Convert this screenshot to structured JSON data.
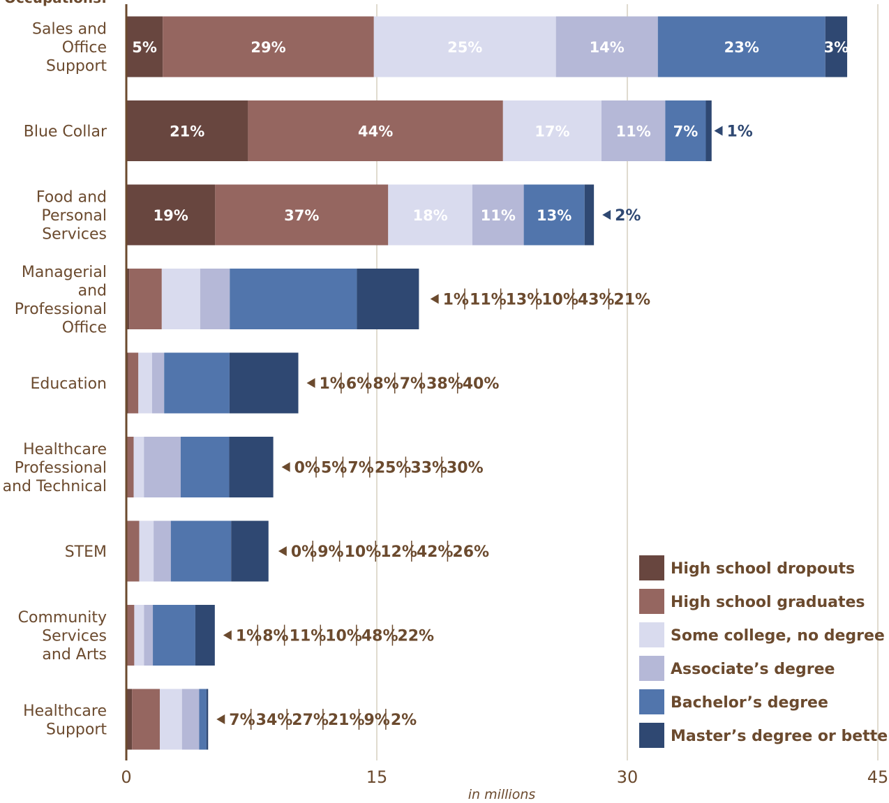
{
  "chart_data": {
    "type": "bar",
    "orientation": "horizontal",
    "stacked": true,
    "y_axis_title": "Occupations:",
    "xlabel": "in millions",
    "xlim": [
      0,
      45
    ],
    "xticks": [
      "0",
      "15",
      "30",
      "45"
    ],
    "grid": true,
    "legend_position": "bottom-right",
    "categories": [
      [
        "Sales and",
        "Office",
        "Support"
      ],
      [
        "Blue Collar"
      ],
      [
        "Food and",
        "Personal",
        "Services"
      ],
      [
        "Managerial",
        "and",
        "Professional",
        "Office"
      ],
      [
        "Education"
      ],
      [
        "Healthcare",
        "Professional",
        "and Technical"
      ],
      [
        "STEM"
      ],
      [
        "Community",
        "Services",
        "and Arts"
      ],
      [
        "Healthcare",
        "Support"
      ]
    ],
    "totals": [
      43.6,
      34.7,
      28.0,
      17.7,
      10.3,
      8.8,
      8.6,
      5.3,
      4.9
    ],
    "series": [
      {
        "name": "High school dropouts",
        "color": "#68463f",
        "percents": [
          5,
          21,
          19,
          1,
          1,
          0,
          0,
          1,
          7
        ]
      },
      {
        "name": "High school graduates",
        "color": "#956660",
        "percents": [
          29,
          44,
          37,
          11,
          6,
          5,
          9,
          8,
          34
        ]
      },
      {
        "name": "Some college, no degree",
        "color": "#d9dbee",
        "percents": [
          25,
          17,
          18,
          13,
          8,
          7,
          10,
          11,
          27
        ]
      },
      {
        "name": "Associate’s degree",
        "color": "#b5b8d7",
        "percents": [
          14,
          11,
          11,
          10,
          7,
          25,
          12,
          10,
          21
        ]
      },
      {
        "name": "Bachelor’s degree",
        "color": "#5175ac",
        "percents": [
          23,
          7,
          13,
          43,
          38,
          33,
          42,
          48,
          9
        ]
      },
      {
        "name": "Master’s degree or better",
        "color": "#2f4872",
        "percents": [
          3,
          1,
          2,
          21,
          40,
          30,
          26,
          22,
          2
        ]
      }
    ],
    "inside_labels": [
      [
        "5%",
        "29%",
        "25%",
        "14%",
        "23%",
        "3%"
      ],
      [
        "21%",
        "44%",
        "17%",
        "11%",
        "7%"
      ],
      [
        "19%",
        "37%",
        "18%",
        "11%",
        "13%"
      ],
      [],
      [],
      [],
      [],
      [],
      []
    ],
    "outside_labels": [
      [],
      [
        "1%"
      ],
      [
        "2%"
      ],
      [
        "1%",
        "11%",
        "13%",
        "10%",
        "43%",
        "21%"
      ],
      [
        "1%",
        "6%",
        "8%",
        "7%",
        "38%",
        "40%"
      ],
      [
        "0%",
        "5%",
        "7%",
        "25%",
        "33%",
        "30%"
      ],
      [
        "0%",
        "9%",
        "10%",
        "12%",
        "42%",
        "26%"
      ],
      [
        "1%",
        "8%",
        "11%",
        "10%",
        "48%",
        "22%"
      ],
      [
        "7%",
        "34%",
        "27%",
        "21%",
        "9%",
        "2%"
      ]
    ],
    "outside_label_colors": [
      "#6b4a2e",
      "#2f4872",
      "#2f4872",
      "#6b4a2e",
      "#6b4a2e",
      "#6b4a2e",
      "#6b4a2e",
      "#6b4a2e",
      "#6b4a2e"
    ]
  },
  "colors": {
    "text": "#6b4a2e",
    "axis": "#6b4a2e",
    "grid": "#d6cfbf"
  }
}
